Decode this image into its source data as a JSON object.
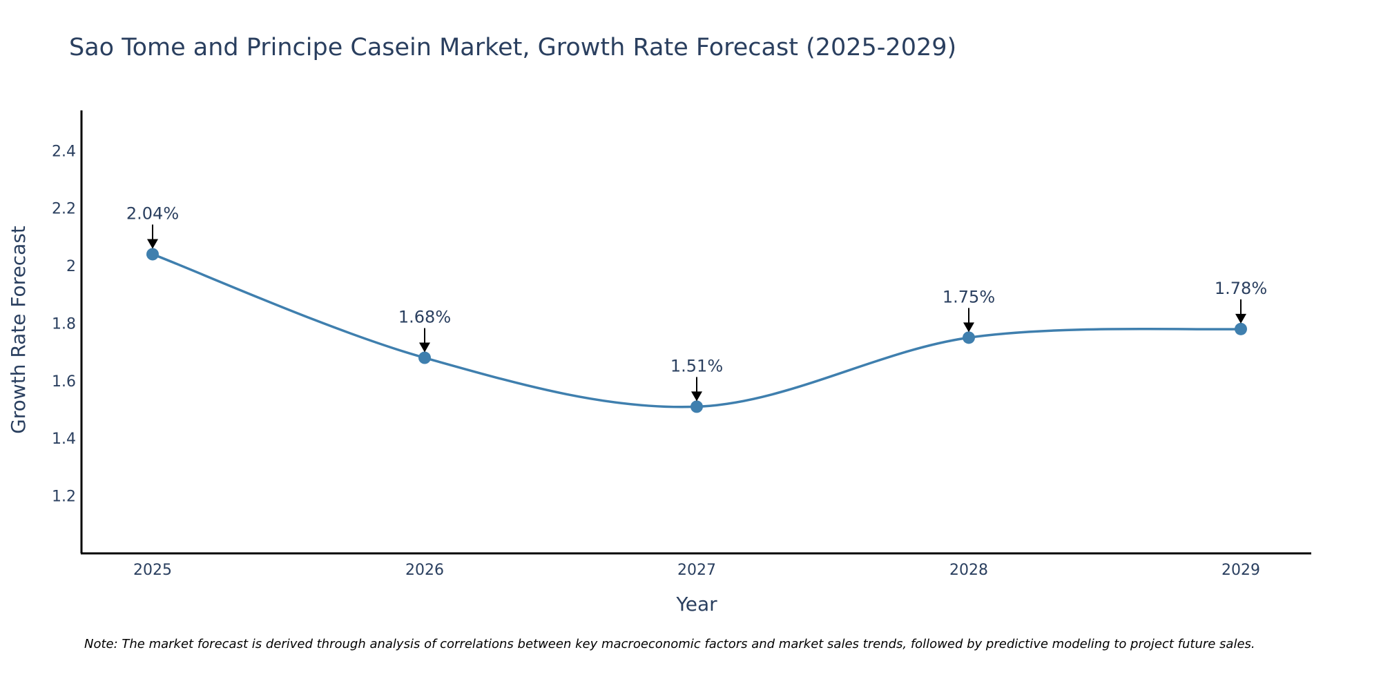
{
  "chart_data": {
    "type": "line",
    "title": "Sao Tome and Principe Casein Market, Growth Rate Forecast (2025-2029)",
    "xlabel": "Year",
    "ylabel": "Growth Rate Forecast",
    "categories": [
      "2025",
      "2026",
      "2027",
      "2028",
      "2029"
    ],
    "series": [
      {
        "name": "Growth Rate Forecast",
        "values": [
          2.04,
          1.68,
          1.51,
          1.75,
          1.78
        ],
        "labels": [
          "2.04%",
          "1.68%",
          "1.51%",
          "1.75%",
          "1.78%"
        ]
      }
    ],
    "yticks": [
      1.2,
      1.4,
      1.6,
      1.8,
      2,
      2.2,
      2.4
    ],
    "ytick_labels": [
      "1.2",
      "1.4",
      "1.6",
      "1.8",
      "2",
      "2.2",
      "2.4"
    ],
    "ylim": [
      1.0,
      2.54
    ],
    "grid": false,
    "colors": {
      "line": "#3f7fae",
      "marker": "#3f7fae",
      "arrow": "#000000",
      "axis": "#000000",
      "text": "#2a3f5f"
    },
    "note": "Note: The market forecast is derived through analysis of correlations between key macroeconomic factors and market sales trends, followed by predictive modeling to project future sales."
  }
}
